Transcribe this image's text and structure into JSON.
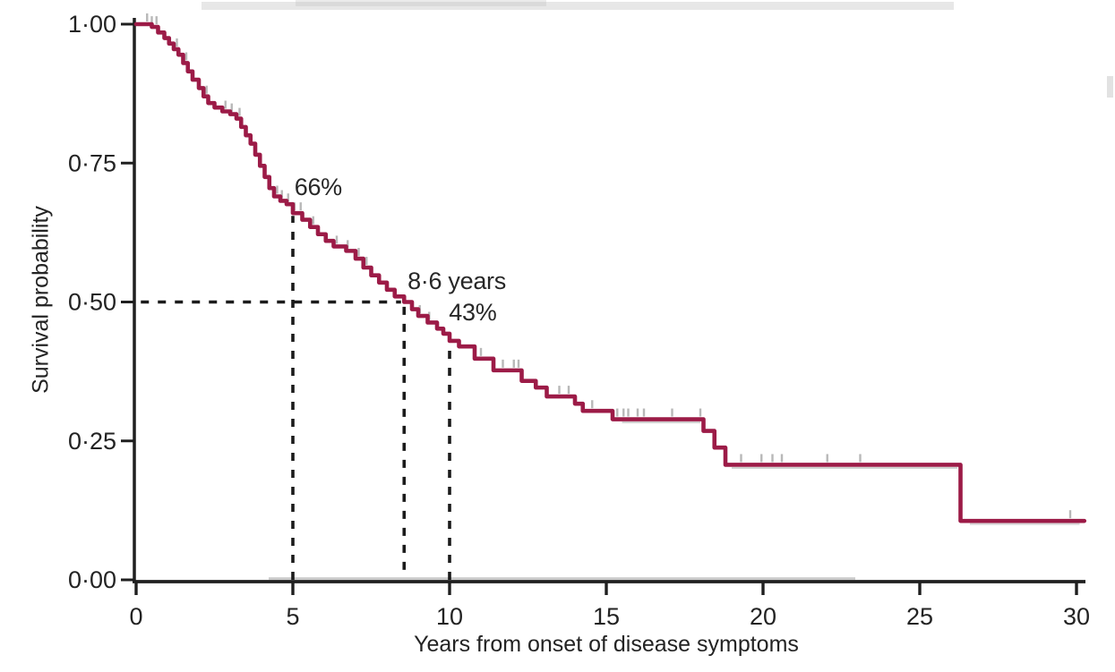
{
  "figure": {
    "kind": "Kaplan-Meier survival curve (scanned journal figure)"
  },
  "chart_data": {
    "type": "line",
    "subtype": "kaplan-meier-step",
    "title": "",
    "xlabel": "Years from onset of disease symptoms",
    "ylabel": "Survival probability",
    "xlim": [
      0,
      30
    ],
    "ylim": [
      0,
      1
    ],
    "grid": false,
    "legend": false,
    "xticks": [
      0,
      5,
      10,
      15,
      20,
      25,
      30
    ],
    "xtick_labels": [
      "0",
      "5",
      "10",
      "15",
      "20",
      "25",
      "30"
    ],
    "yticks": [
      0,
      0.25,
      0.5,
      0.75,
      1
    ],
    "ytick_labels": [
      "0·00",
      "0·25",
      "0·50",
      "0·75",
      "1·00"
    ],
    "series": [
      {
        "name": "Survival",
        "color": "#9c1b47",
        "step": "post",
        "points": [
          [
            0,
            1.0
          ],
          [
            0.5,
            0.995
          ],
          [
            0.7,
            0.985
          ],
          [
            0.9,
            0.975
          ],
          [
            1.05,
            0.965
          ],
          [
            1.2,
            0.955
          ],
          [
            1.35,
            0.945
          ],
          [
            1.5,
            0.93
          ],
          [
            1.65,
            0.915
          ],
          [
            1.8,
            0.9
          ],
          [
            2.0,
            0.885
          ],
          [
            2.15,
            0.87
          ],
          [
            2.3,
            0.858
          ],
          [
            2.5,
            0.85
          ],
          [
            2.75,
            0.843
          ],
          [
            3.0,
            0.838
          ],
          [
            3.2,
            0.83
          ],
          [
            3.35,
            0.815
          ],
          [
            3.5,
            0.8
          ],
          [
            3.65,
            0.785
          ],
          [
            3.8,
            0.765
          ],
          [
            3.95,
            0.745
          ],
          [
            4.1,
            0.725
          ],
          [
            4.25,
            0.705
          ],
          [
            4.4,
            0.69
          ],
          [
            4.6,
            0.682
          ],
          [
            4.8,
            0.676
          ],
          [
            5.0,
            0.66
          ],
          [
            5.3,
            0.648
          ],
          [
            5.55,
            0.635
          ],
          [
            5.8,
            0.622
          ],
          [
            6.05,
            0.61
          ],
          [
            6.3,
            0.6
          ],
          [
            6.7,
            0.592
          ],
          [
            7.0,
            0.578
          ],
          [
            7.25,
            0.562
          ],
          [
            7.5,
            0.548
          ],
          [
            7.75,
            0.535
          ],
          [
            8.0,
            0.522
          ],
          [
            8.25,
            0.51
          ],
          [
            8.55,
            0.5
          ],
          [
            8.8,
            0.487
          ],
          [
            9.0,
            0.475
          ],
          [
            9.3,
            0.463
          ],
          [
            9.6,
            0.452
          ],
          [
            9.8,
            0.443
          ],
          [
            10.0,
            0.43
          ],
          [
            10.3,
            0.42
          ],
          [
            10.8,
            0.398
          ],
          [
            11.4,
            0.377
          ],
          [
            12.3,
            0.358
          ],
          [
            12.75,
            0.346
          ],
          [
            13.1,
            0.33
          ],
          [
            14.0,
            0.317
          ],
          [
            14.25,
            0.304
          ],
          [
            15.2,
            0.289
          ],
          [
            18.1,
            0.268
          ],
          [
            18.45,
            0.238
          ],
          [
            18.8,
            0.207
          ],
          [
            26.3,
            0.106
          ],
          [
            30.25,
            0.106
          ]
        ]
      }
    ],
    "censor_marks": {
      "color": "#b5b5b5",
      "years": [
        0.35,
        0.5,
        0.65,
        1.3,
        1.6,
        2.25,
        2.85,
        3.05,
        3.3,
        4.5,
        4.65,
        4.85,
        5.05,
        5.25,
        5.65,
        6.4,
        6.75,
        7.1,
        7.35,
        9.05,
        9.35,
        11.0,
        11.7,
        12.05,
        12.2,
        13.5,
        13.8,
        14.55,
        15.35,
        15.55,
        15.7,
        16.0,
        16.2,
        17.1,
        18.0,
        19.3,
        19.95,
        20.3,
        20.6,
        22.05,
        23.1,
        29.8
      ]
    },
    "reference_lines": [
      {
        "type": "h",
        "y": 0.5,
        "x_from": 0.15,
        "x_to": 8.45
      },
      {
        "type": "v",
        "x": 5.0,
        "y_from": 0.0,
        "y_to": 0.655
      },
      {
        "type": "v",
        "x": 8.55,
        "y_from": 0.018,
        "y_to": 0.495
      },
      {
        "type": "v",
        "x": 10.0,
        "y_from": 0.0,
        "y_to": 0.428
      }
    ],
    "annotations": [
      {
        "text": "66%",
        "x_year": 5.05,
        "y_prob": 0.69
      },
      {
        "text": "8·6 years",
        "x_year": 8.66,
        "y_prob": 0.52
      },
      {
        "text": "43%",
        "x_year": 9.98,
        "y_prob": 0.464
      }
    ],
    "key_values": {
      "survival_at_5_years": "66%",
      "median_survival": "8·6 years",
      "survival_at_10_years": "43%"
    },
    "axis_color": "#1f1f1f",
    "dashed_line_color": "#1b1b1b"
  }
}
